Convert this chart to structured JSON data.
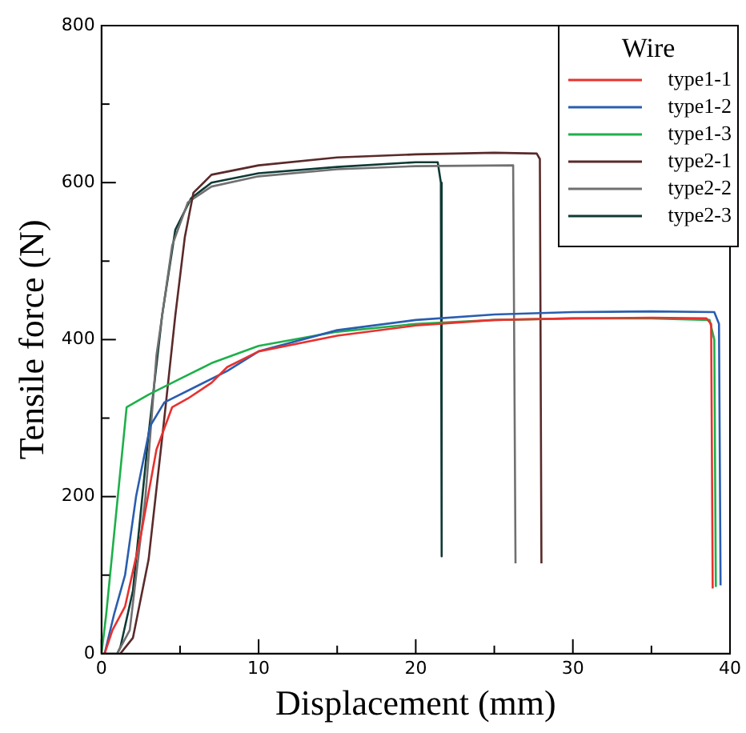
{
  "chart_data": {
    "type": "line",
    "xlabel": "Displacement (mm)",
    "ylabel": "Tensile force (N)",
    "legend_title": "Wire",
    "legend": "top right",
    "marker": "none",
    "line_style": "solid",
    "grid": false,
    "xlim": [
      0,
      40
    ],
    "xticks": [
      0,
      {
        "value": 5,
        "label": null
      },
      10,
      {
        "value": 15,
        "label": null
      },
      20,
      {
        "value": 25,
        "label": null
      },
      30,
      {
        "value": 35,
        "label": null
      },
      40
    ],
    "ylim": [
      0,
      800
    ],
    "yticks": [
      0,
      {
        "value": 100,
        "label": null
      },
      200,
      {
        "value": 300,
        "label": null
      },
      400,
      {
        "value": 500,
        "label": null
      },
      600,
      {
        "value": 700,
        "label": null
      },
      800
    ],
    "series": [
      {
        "name": "type1-1",
        "color": "#e8312f",
        "x": [
          0.2,
          0.7,
          1.5,
          2.5,
          3.5,
          4.5,
          5.5,
          7,
          8,
          10,
          15,
          20,
          25,
          30,
          35,
          38.5,
          38.8,
          38.9
        ],
        "values": [
          0,
          30,
          60,
          150,
          260,
          314,
          325,
          345,
          365,
          385,
          405,
          418,
          425,
          427,
          428,
          427,
          420,
          83
        ]
      },
      {
        "name": "type1-2",
        "color": "#2a5db0",
        "x": [
          0.2,
          0.8,
          1.5,
          2.2,
          3.1,
          4,
          6,
          8,
          10,
          15,
          20,
          25,
          30,
          35,
          39,
          39.3,
          39.4
        ],
        "values": [
          0,
          50,
          100,
          200,
          290,
          320,
          340,
          360,
          385,
          412,
          425,
          432,
          435,
          436,
          435,
          420,
          87
        ]
      },
      {
        "name": "type1-3",
        "color": "#1db04a",
        "x": [
          0,
          0.3,
          1.6,
          3,
          5,
          7,
          10,
          15,
          20,
          25,
          30,
          35,
          38.7,
          39,
          39.1
        ],
        "values": [
          0,
          50,
          314,
          330,
          350,
          370,
          392,
          410,
          420,
          425,
          427,
          427,
          425,
          400,
          85
        ]
      },
      {
        "name": "type2-1",
        "color": "#5a2a2a",
        "x": [
          1.2,
          2,
          3,
          4,
          4.7,
          5.3,
          5.85,
          7,
          10,
          15,
          20,
          25,
          27.7,
          27.9,
          28
        ],
        "values": [
          0,
          20,
          120,
          300,
          431,
          530,
          587,
          610,
          622,
          632,
          636,
          638,
          637,
          630,
          115
        ]
      },
      {
        "name": "type2-2",
        "color": "#707070",
        "x": [
          1,
          1.8,
          2.8,
          3.5,
          4.5,
          5.5,
          7,
          10,
          15,
          20,
          26.2,
          26.35
        ],
        "values": [
          0,
          30,
          200,
          380,
          520,
          575,
          595,
          608,
          617,
          621,
          622,
          115
        ]
      },
      {
        "name": "type2-3",
        "color": "#0f3a35",
        "x": [
          1,
          1.2,
          2,
          3,
          3.86,
          4.7,
          5.7,
          7,
          10,
          15,
          20,
          21.4,
          21.6,
          21.65
        ],
        "values": [
          0,
          8,
          80,
          280,
          431,
          540,
          580,
          600,
          612,
          620,
          626,
          626,
          600,
          124
        ]
      }
    ]
  }
}
